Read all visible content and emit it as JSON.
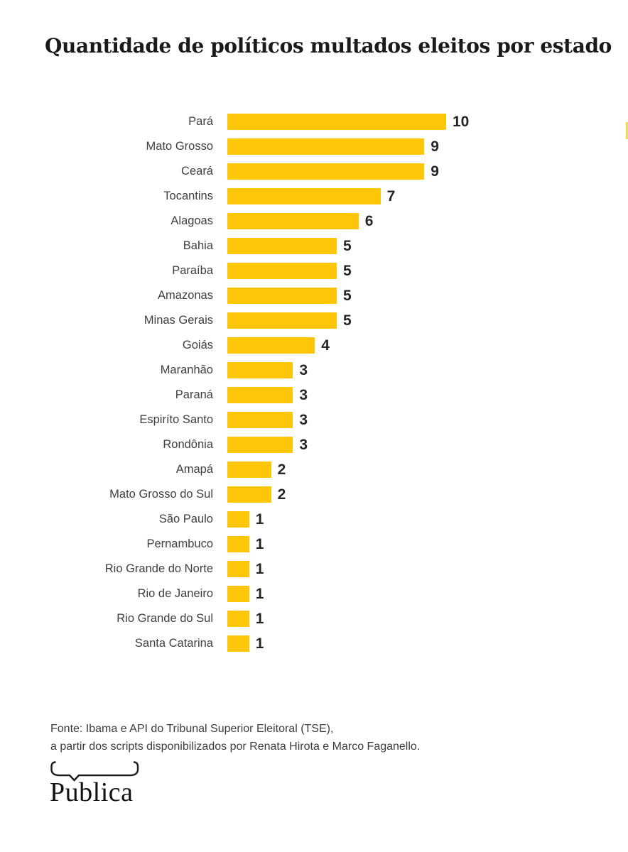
{
  "title": "Quantidade de políticos multados eleitos por estado",
  "chart_data": {
    "type": "bar",
    "orientation": "horizontal",
    "title": "Quantidade de políticos multados eleitos por estado",
    "categories": [
      "Pará",
      "Mato Grosso",
      "Ceará",
      "Tocantins",
      "Alagoas",
      "Bahia",
      "Paraíba",
      "Amazonas",
      "Minas Gerais",
      "Goiás",
      "Maranhão",
      "Paraná",
      "Espiríto Santo",
      "Rondônia",
      "Amapá",
      "Mato Grosso do Sul",
      "São Paulo",
      "Pernambuco",
      "Rio Grande do Norte",
      "Rio de Janeiro",
      "Rio Grande do Sul",
      "Santa Catarina"
    ],
    "values": [
      10,
      9,
      9,
      7,
      6,
      5,
      5,
      5,
      5,
      4,
      3,
      3,
      3,
      3,
      2,
      2,
      1,
      1,
      1,
      1,
      1,
      1
    ],
    "xlabel": "",
    "ylabel": "",
    "xlim": [
      0,
      10
    ],
    "grid": false,
    "legend": false,
    "value_labels": true,
    "bar_color": "#fdc608"
  },
  "footer": {
    "source_line1": "Fonte: Ibama e API do Tribunal Superior Eleitoral (TSE),",
    "source_line2": "a partir dos scripts disponibilizados por Renata Hirota e Marco Faganello."
  },
  "logo": {
    "text": "Publica",
    "brand": "Pública"
  },
  "colors": {
    "page_bg": "#ffffff",
    "bar": "#fdc608",
    "title_text": "#1a1a1a",
    "label_text": "#3f3f3f",
    "value_text": "#262626",
    "footer_text": "#3c3c3c",
    "edge_mark": "#f5d94d",
    "logo_ink": "#1a1a1a"
  }
}
